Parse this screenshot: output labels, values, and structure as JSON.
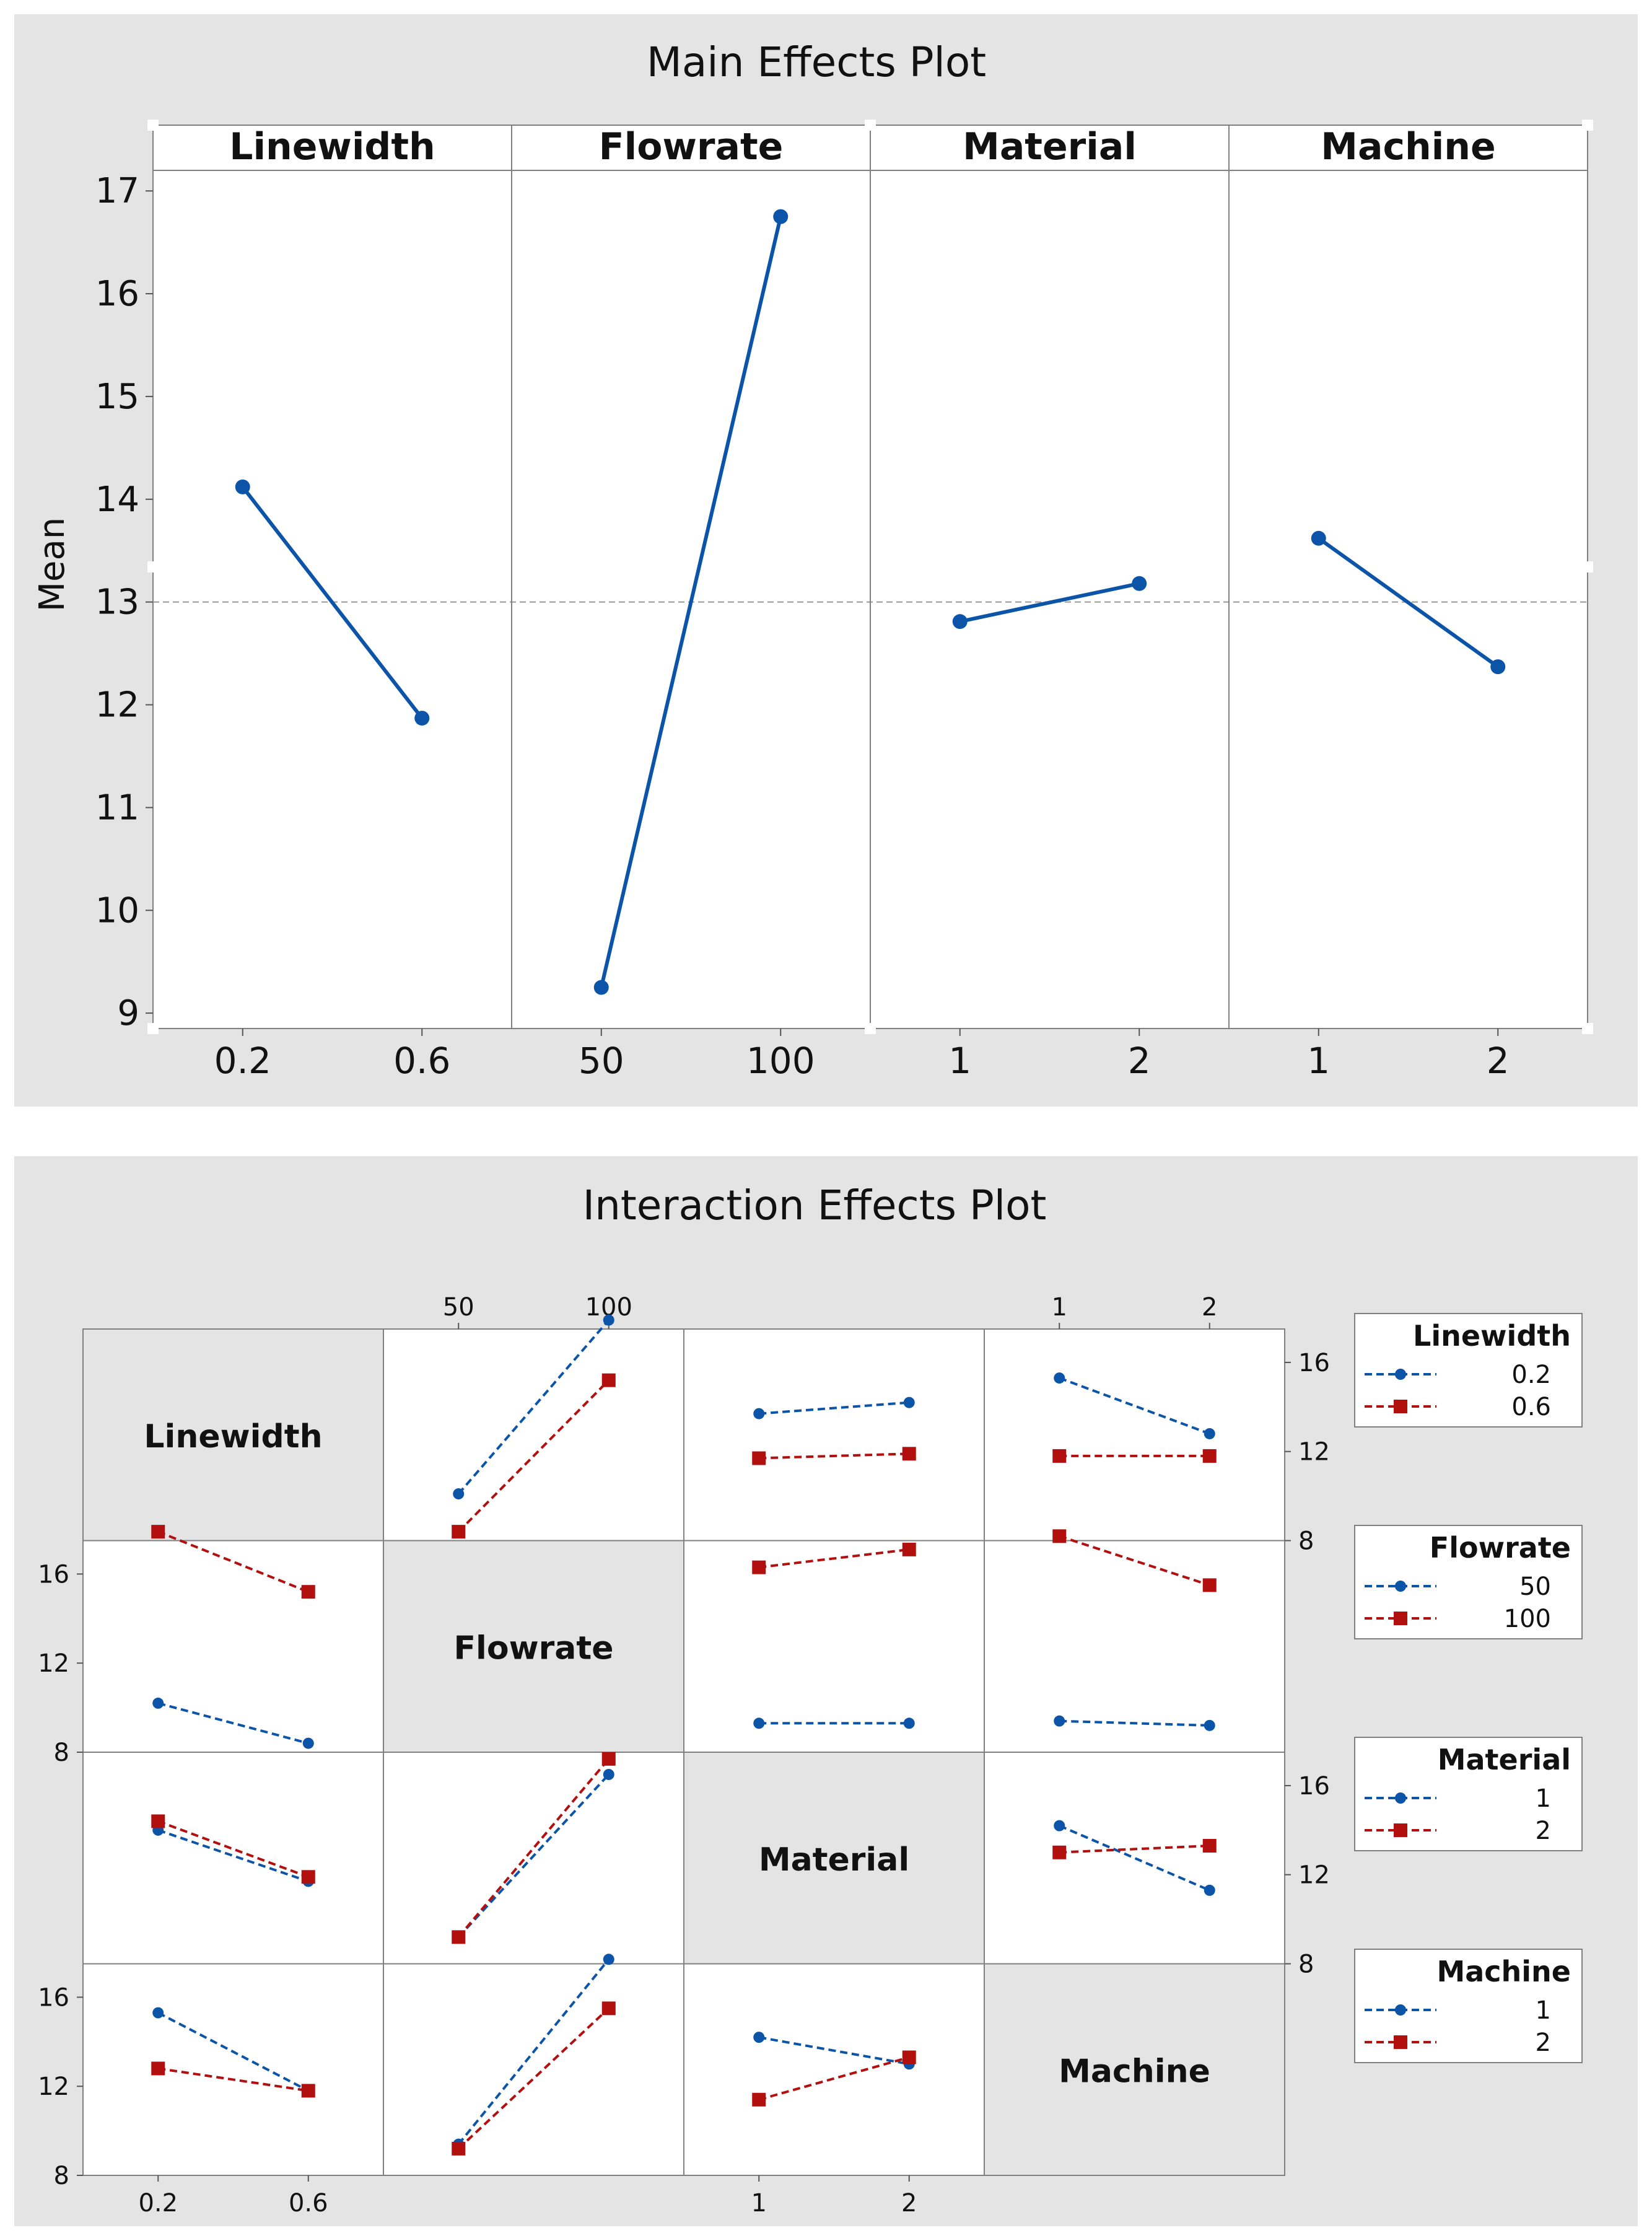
{
  "chart_data": [
    {
      "type": "line",
      "title": "Main Effects Plot",
      "ylabel": "Mean",
      "ylim": [
        8.85,
        17.2
      ],
      "yticks": [
        "9",
        "10",
        "11",
        "12",
        "13",
        "14",
        "15",
        "16",
        "17"
      ],
      "reference_line": 13.0,
      "grid": false,
      "panels": [
        {
          "factor": "Linewidth",
          "levels": [
            "0.2",
            "0.6"
          ],
          "values": [
            14.12,
            11.87
          ]
        },
        {
          "factor": "Flowrate",
          "levels": [
            "50",
            "100"
          ],
          "values": [
            9.25,
            16.75
          ]
        },
        {
          "factor": "Material",
          "levels": [
            "1",
            "2"
          ],
          "values": [
            12.81,
            13.18
          ]
        },
        {
          "factor": "Machine",
          "levels": [
            "1",
            "2"
          ],
          "values": [
            13.62,
            12.37
          ]
        }
      ],
      "colors": {
        "line": "#0b54a8",
        "reference": "#999999",
        "background": "#e4e4e4"
      }
    },
    {
      "type": "line",
      "title": "Interaction Effects Plot",
      "ylim": [
        8,
        17.5
      ],
      "yticks": [
        "8",
        "12",
        "16"
      ],
      "factors": [
        {
          "name": "Linewidth",
          "levels": [
            "0.2",
            "0.6"
          ]
        },
        {
          "name": "Flowrate",
          "levels": [
            "50",
            "100"
          ]
        },
        {
          "name": "Material",
          "levels": [
            "1",
            "2"
          ]
        },
        {
          "name": "Machine",
          "levels": [
            "1",
            "2"
          ]
        }
      ],
      "legends": [
        {
          "title": "Linewidth",
          "entries": [
            "0.2",
            "0.6"
          ]
        },
        {
          "title": "Flowrate",
          "entries": [
            "50",
            "100"
          ]
        },
        {
          "title": "Material",
          "entries": [
            "1",
            "2"
          ]
        },
        {
          "title": "Machine",
          "entries": [
            "1",
            "2"
          ]
        }
      ],
      "cells": [
        {
          "row": 0,
          "col": 1,
          "series": [
            [
              10.1,
              17.9
            ],
            [
              8.4,
              15.2
            ]
          ]
        },
        {
          "row": 0,
          "col": 2,
          "series": [
            [
              13.7,
              14.2
            ],
            [
              11.7,
              11.9
            ]
          ]
        },
        {
          "row": 0,
          "col": 3,
          "series": [
            [
              15.3,
              12.8
            ],
            [
              11.8,
              11.8
            ]
          ]
        },
        {
          "row": 1,
          "col": 0,
          "series": [
            [
              10.2,
              8.4
            ],
            [
              17.9,
              15.2
            ]
          ]
        },
        {
          "row": 1,
          "col": 2,
          "series": [
            [
              9.3,
              9.3
            ],
            [
              16.3,
              17.1
            ]
          ]
        },
        {
          "row": 1,
          "col": 3,
          "series": [
            [
              9.4,
              9.2
            ],
            [
              17.7,
              15.5
            ]
          ]
        },
        {
          "row": 2,
          "col": 0,
          "series": [
            [
              14.0,
              11.7
            ],
            [
              14.4,
              11.9
            ]
          ]
        },
        {
          "row": 2,
          "col": 1,
          "series": [
            [
              9.2,
              16.5
            ],
            [
              9.2,
              17.2
            ]
          ]
        },
        {
          "row": 2,
          "col": 3,
          "series": [
            [
              14.2,
              11.3
            ],
            [
              13.0,
              13.3
            ]
          ]
        },
        {
          "row": 3,
          "col": 0,
          "series": [
            [
              15.3,
              11.8
            ],
            [
              12.8,
              11.8
            ]
          ]
        },
        {
          "row": 3,
          "col": 1,
          "series": [
            [
              9.4,
              17.7
            ],
            [
              9.2,
              15.5
            ]
          ]
        },
        {
          "row": 3,
          "col": 2,
          "series": [
            [
              14.2,
              13.0
            ],
            [
              11.4,
              13.3
            ]
          ]
        }
      ],
      "colors": {
        "level1": "#0b54a8",
        "level2": "#b20f0f",
        "diagonal": "#e4e4e4",
        "background": "#e4e4e4"
      }
    }
  ]
}
